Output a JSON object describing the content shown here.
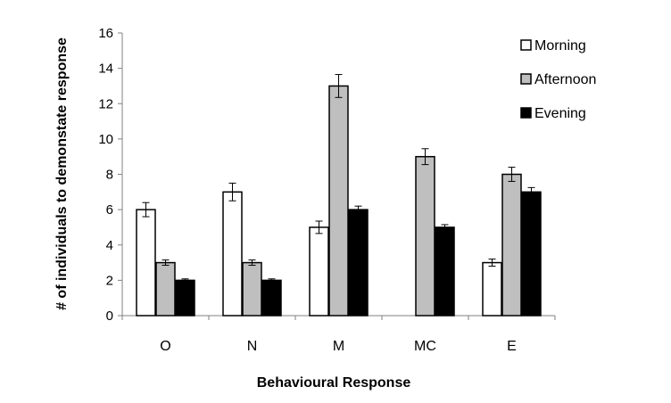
{
  "chart_data": {
    "type": "bar",
    "title": "",
    "xlabel": "Behavioural Response",
    "ylabel": "# of individuals to demonstate response",
    "categories": [
      "O",
      "N",
      "M",
      "MC",
      "E"
    ],
    "ylim": [
      0,
      16
    ],
    "yticks": [
      0,
      2,
      4,
      6,
      8,
      10,
      12,
      14,
      16
    ],
    "grid": false,
    "legend_position": "top-right",
    "series": [
      {
        "name": "Morning",
        "values": [
          6,
          7,
          5,
          0,
          3
        ],
        "errors": [
          0.4,
          0.5,
          0.35,
          0,
          0.2
        ],
        "color": "#ffffff"
      },
      {
        "name": "Afternoon",
        "values": [
          3,
          3,
          13,
          9,
          8
        ],
        "errors": [
          0.15,
          0.15,
          0.65,
          0.45,
          0.4
        ],
        "color": "#bfbfbf"
      },
      {
        "name": "Evening",
        "values": [
          2,
          2,
          6,
          5,
          7
        ],
        "errors": [
          0.08,
          0.08,
          0.2,
          0.15,
          0.25
        ],
        "color": "#000000"
      }
    ]
  }
}
